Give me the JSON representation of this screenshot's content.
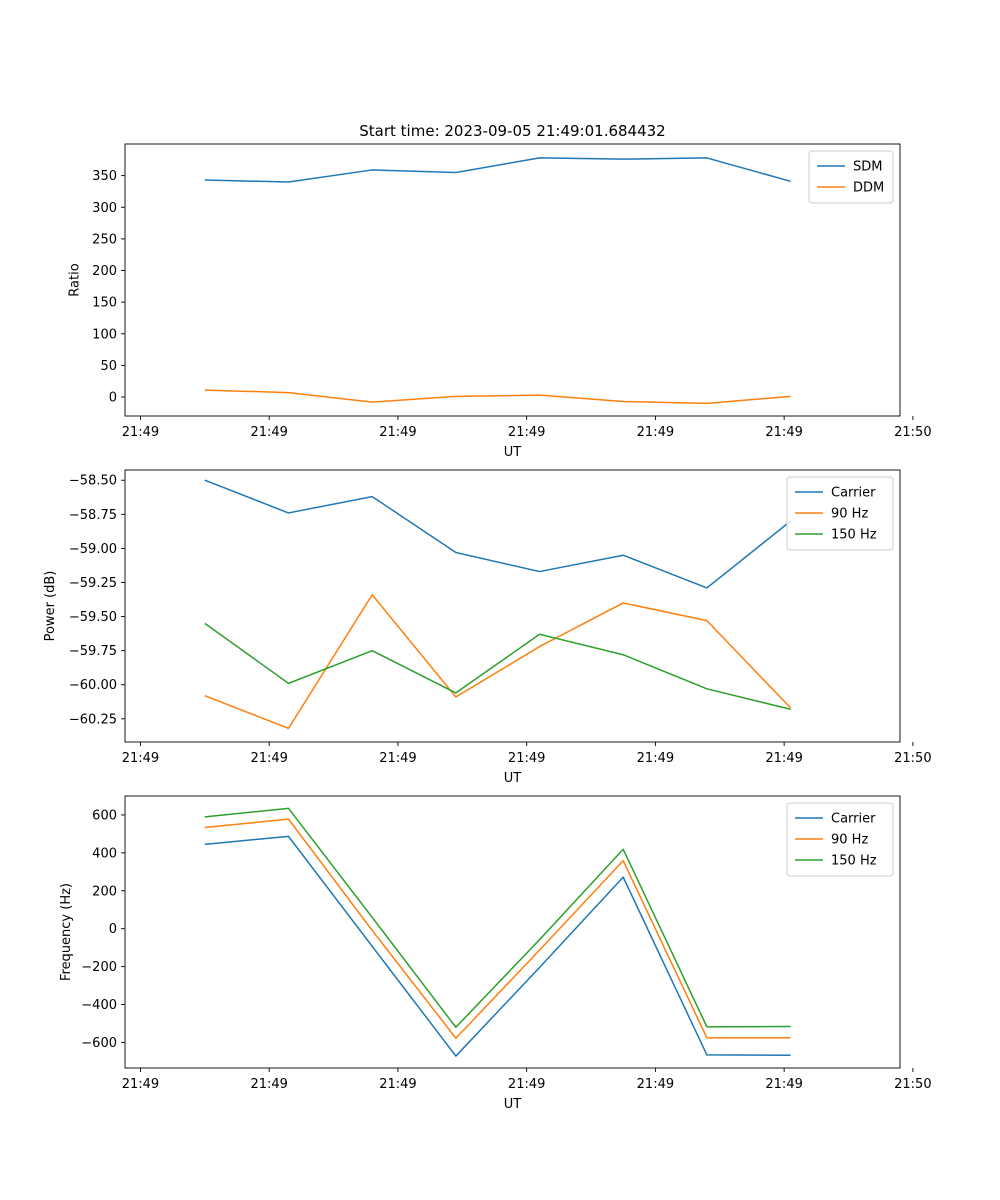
{
  "figure": {
    "title": "Start time: 2023-09-05 21:49:01.684432"
  },
  "colors": {
    "blue": "#1f77b4",
    "orange": "#ff7f0e",
    "green": "#2ca02c"
  },
  "chart_data": [
    {
      "type": "line",
      "title": "Start time: 2023-09-05 21:49:01.684432",
      "xlabel": "UT",
      "ylabel": "Ratio",
      "x": [
        0.5,
        1.15,
        1.8,
        2.45,
        3.1,
        3.75,
        4.4,
        5.05
      ],
      "xlim": [
        -0.12,
        5.9
      ],
      "xticks": [
        0,
        1,
        2,
        3,
        4,
        5,
        6
      ],
      "xtick_labels": [
        "21:49",
        "21:49",
        "21:49",
        "21:49",
        "21:49",
        "21:49",
        "21:50"
      ],
      "ylim": [
        -30,
        400
      ],
      "yticks": [
        0,
        50,
        100,
        150,
        200,
        250,
        300,
        350
      ],
      "ytick_labels": [
        "0",
        "50",
        "100",
        "150",
        "200",
        "250",
        "300",
        "350"
      ],
      "legend": "top-right",
      "series": [
        {
          "name": "SDM",
          "color": "#1f77b4",
          "values": [
            343,
            340,
            359,
            355,
            378,
            376,
            378,
            341
          ]
        },
        {
          "name": "DDM",
          "color": "#ff7f0e",
          "values": [
            11,
            7,
            -8,
            1,
            3,
            -7,
            -10,
            1
          ]
        }
      ]
    },
    {
      "type": "line",
      "title": "",
      "xlabel": "UT",
      "ylabel": "Power (dB)",
      "x": [
        0.5,
        1.15,
        1.8,
        2.45,
        3.1,
        3.75,
        4.4,
        5.05
      ],
      "xlim": [
        -0.12,
        5.9
      ],
      "xticks": [
        0,
        1,
        2,
        3,
        4,
        5,
        6
      ],
      "xtick_labels": [
        "21:49",
        "21:49",
        "21:49",
        "21:49",
        "21:49",
        "21:49",
        "21:50"
      ],
      "ylim": [
        -60.42,
        -58.425
      ],
      "yticks": [
        -60.25,
        -60.0,
        -59.75,
        -59.5,
        -59.25,
        -59.0,
        -58.75,
        -58.5
      ],
      "ytick_labels": [
        "−60.25",
        "−60.00",
        "−59.75",
        "−59.50",
        "−59.25",
        "−59.00",
        "−58.75",
        "−58.50"
      ],
      "legend": "top-right",
      "series": [
        {
          "name": "Carrier",
          "color": "#1f77b4",
          "values": [
            -58.5,
            -58.74,
            -58.62,
            -59.03,
            -59.17,
            -59.05,
            -59.29,
            -58.8
          ]
        },
        {
          "name": "90 Hz",
          "color": "#ff7f0e",
          "values": [
            -60.08,
            -60.32,
            -59.34,
            -60.09,
            -59.72,
            -59.4,
            -59.53,
            -60.17
          ]
        },
        {
          "name": "150 Hz",
          "color": "#2ca02c",
          "values": [
            -59.55,
            -59.99,
            -59.75,
            -60.06,
            -59.63,
            -59.78,
            -60.03,
            -60.18
          ]
        }
      ]
    },
    {
      "type": "line",
      "title": "",
      "xlabel": "UT",
      "ylabel": "Frequency (Hz)",
      "x": [
        0.5,
        1.15,
        1.8,
        2.45,
        3.1,
        3.75,
        4.4,
        5.05
      ],
      "xlim": [
        -0.12,
        5.9
      ],
      "xticks": [
        0,
        1,
        2,
        3,
        4,
        5,
        6
      ],
      "xtick_labels": [
        "21:49",
        "21:49",
        "21:49",
        "21:49",
        "21:49",
        "21:49",
        "21:50"
      ],
      "ylim": [
        -735,
        700
      ],
      "yticks": [
        -600,
        -400,
        -200,
        0,
        200,
        400,
        600
      ],
      "ytick_labels": [
        "−600",
        "−400",
        "−200",
        "0",
        "200",
        "400",
        "600"
      ],
      "legend": "top-right",
      "series": [
        {
          "name": "Carrier",
          "color": "#1f77b4",
          "values": [
            445,
            487,
            -93,
            -672,
            -205,
            272,
            -666,
            -668
          ]
        },
        {
          "name": "90 Hz",
          "color": "#ff7f0e",
          "values": [
            534,
            578,
            -9,
            -578,
            -113,
            359,
            -576,
            -576
          ]
        },
        {
          "name": "150 Hz",
          "color": "#2ca02c",
          "values": [
            590,
            635,
            60,
            -520,
            -58,
            419,
            -518,
            -516
          ]
        }
      ]
    }
  ]
}
